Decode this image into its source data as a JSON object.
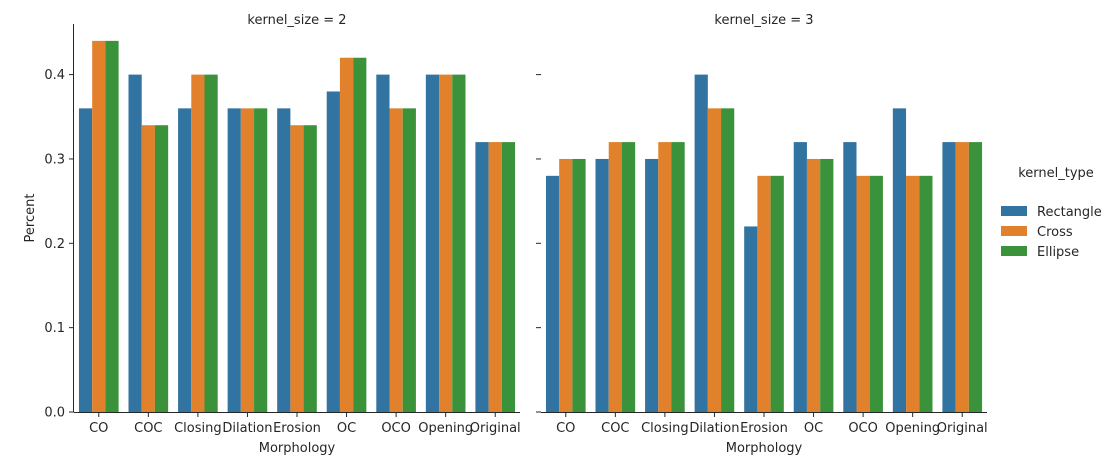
{
  "chart_data": {
    "type": "bar",
    "facet_variable": "kernel_size",
    "legend": {
      "title": "kernel_type",
      "placement": "right"
    },
    "colors": {
      "Rectangle": "#3274a1",
      "Cross": "#e1812c",
      "Ellipse": "#3a923a"
    },
    "categories": [
      "CO",
      "COC",
      "Closing",
      "Dilation",
      "Erosion",
      "OC",
      "OCO",
      "Opening",
      "Original"
    ],
    "xlabel": "Morphology",
    "ylabel": "Percent",
    "ylim": [
      0,
      0.46
    ],
    "yticks": [
      "0.0",
      "0.1",
      "0.2",
      "0.3",
      "0.4"
    ],
    "grid": false,
    "panels": [
      {
        "title": "kernel_size = 2",
        "series": [
          {
            "name": "Rectangle",
            "values": [
              0.36,
              0.4,
              0.36,
              0.36,
              0.36,
              0.38,
              0.4,
              0.4,
              0.32
            ]
          },
          {
            "name": "Cross",
            "values": [
              0.44,
              0.34,
              0.4,
              0.36,
              0.34,
              0.42,
              0.36,
              0.4,
              0.32
            ]
          },
          {
            "name": "Ellipse",
            "values": [
              0.44,
              0.34,
              0.4,
              0.36,
              0.34,
              0.42,
              0.36,
              0.4,
              0.32
            ]
          }
        ]
      },
      {
        "title": "kernel_size = 3",
        "series": [
          {
            "name": "Rectangle",
            "values": [
              0.28,
              0.3,
              0.3,
              0.4,
              0.22,
              0.32,
              0.32,
              0.36,
              0.32
            ]
          },
          {
            "name": "Cross",
            "values": [
              0.3,
              0.32,
              0.32,
              0.36,
              0.28,
              0.3,
              0.28,
              0.28,
              0.32
            ]
          },
          {
            "name": "Ellipse",
            "values": [
              0.3,
              0.32,
              0.32,
              0.36,
              0.28,
              0.3,
              0.28,
              0.28,
              0.32
            ]
          }
        ]
      }
    ]
  }
}
